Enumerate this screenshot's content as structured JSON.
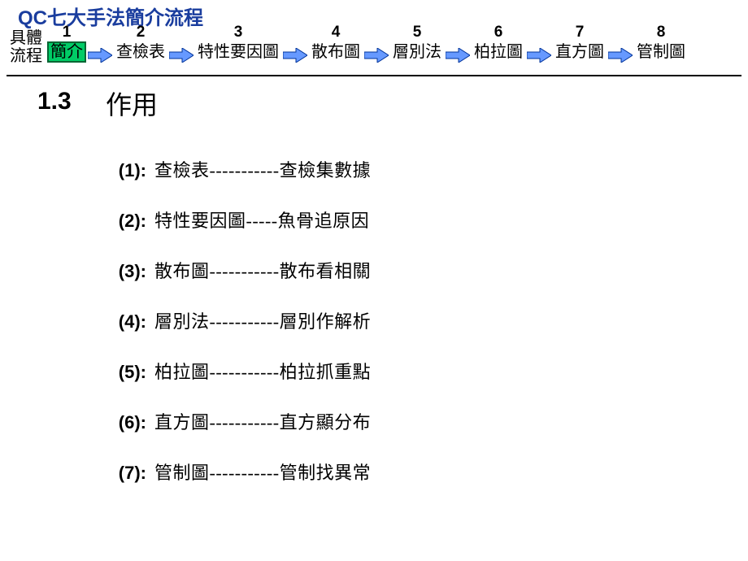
{
  "header": {
    "title": "QC七大手法簡介流程",
    "title_color": "#1a3d9e",
    "title_fontsize": 24
  },
  "flow": {
    "prefix_label_line1": "具體",
    "prefix_label_line2": "流程",
    "active_index": 0,
    "active_bg": "#00cc66",
    "active_border": "#006633",
    "arrow_fill": "#6699ff",
    "arrow_stroke": "#003399",
    "steps": [
      {
        "num": "1",
        "label": "簡介"
      },
      {
        "num": "2",
        "label": "查檢表"
      },
      {
        "num": "3",
        "label": "特性要因圖"
      },
      {
        "num": "4",
        "label": "散布圖"
      },
      {
        "num": "5",
        "label": "層別法"
      },
      {
        "num": "6",
        "label": "柏拉圖"
      },
      {
        "num": "7",
        "label": "直方圖"
      },
      {
        "num": "8",
        "label": "管制圖"
      }
    ]
  },
  "section": {
    "number": "1.3",
    "title": "作用"
  },
  "items": [
    {
      "num": "(1):",
      "text": "查檢表-----------查檢集數據"
    },
    {
      "num": "(2):",
      "text": "特性要因圖-----魚骨追原因"
    },
    {
      "num": "(3):",
      "text": "散布圖-----------散布看相關"
    },
    {
      "num": "(4):",
      "text": "層別法-----------層別作解析"
    },
    {
      "num": "(5):",
      "text": "柏拉圖-----------柏拉抓重點"
    },
    {
      "num": "(6):",
      "text": "直方圖-----------直方顯分布"
    },
    {
      "num": "(7):",
      "text": "管制圖-----------管制找異常"
    }
  ],
  "colors": {
    "background": "#ffffff",
    "text": "#000000",
    "hr": "#000000"
  }
}
